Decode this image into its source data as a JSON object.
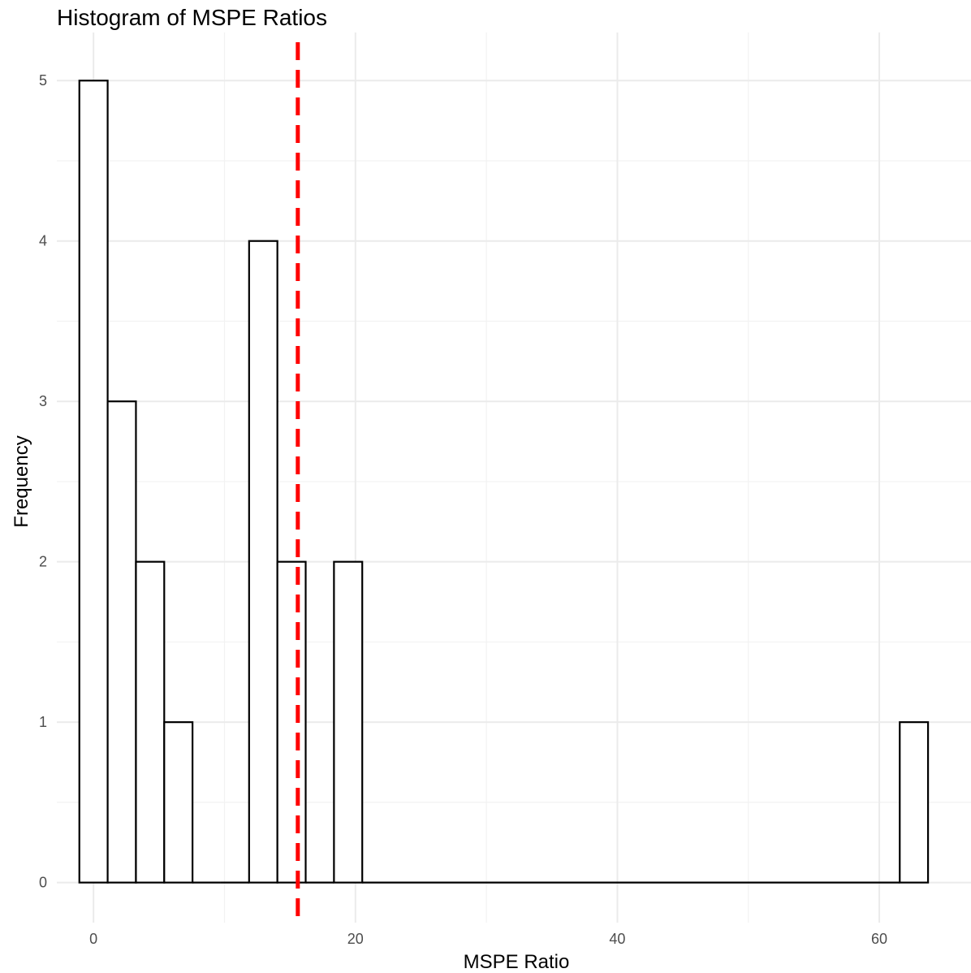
{
  "chart_data": {
    "type": "histogram",
    "title": "Histogram of MSPE Ratios",
    "xlabel": "MSPE Ratio",
    "ylabel": "Frequency",
    "xlim": [
      -2.8,
      67.0
    ],
    "ylim": [
      -0.25,
      5.3
    ],
    "xticks": [
      0,
      20,
      40,
      60
    ],
    "yticks": [
      0,
      1,
      2,
      3,
      4,
      5
    ],
    "bin_width": 2.16,
    "bins": [
      {
        "x0": -1.08,
        "x1": 1.08,
        "count": 5
      },
      {
        "x0": 1.08,
        "x1": 3.24,
        "count": 3
      },
      {
        "x0": 3.24,
        "x1": 5.4,
        "count": 2
      },
      {
        "x0": 5.4,
        "x1": 7.56,
        "count": 1
      },
      {
        "x0": 7.56,
        "x1": 9.72,
        "count": 0
      },
      {
        "x0": 9.72,
        "x1": 11.88,
        "count": 0
      },
      {
        "x0": 11.88,
        "x1": 14.04,
        "count": 4
      },
      {
        "x0": 14.04,
        "x1": 16.2,
        "count": 2
      },
      {
        "x0": 16.2,
        "x1": 18.36,
        "count": 0
      },
      {
        "x0": 18.36,
        "x1": 20.52,
        "count": 2
      },
      {
        "x0": 20.52,
        "x1": 61.56,
        "count": 0
      },
      {
        "x0": 61.56,
        "x1": 63.72,
        "count": 1
      }
    ],
    "reference_line": {
      "x": 15.6,
      "style": "dashed",
      "color": "#ff0000"
    },
    "grid": true,
    "legend": "none"
  }
}
